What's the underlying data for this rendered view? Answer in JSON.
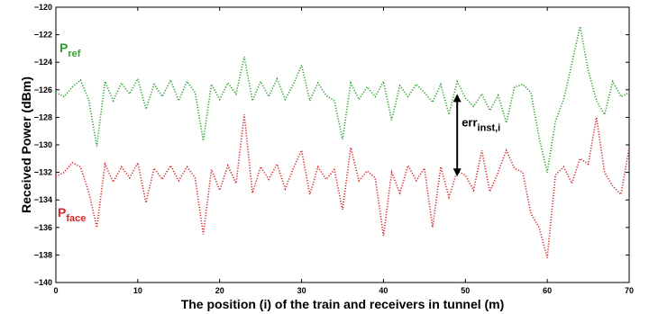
{
  "chart_data": {
    "type": "line",
    "title": "",
    "xlabel": "The position (i) of the train and receivers in tunnel (m)",
    "ylabel": "Received Power (dBm)",
    "xlim": [
      0,
      70
    ],
    "ylim": [
      -140,
      -120
    ],
    "xticks": [
      "0",
      "10",
      "20",
      "30",
      "40",
      "50",
      "60",
      "70"
    ],
    "yticks": [
      "−140",
      "−138",
      "−136",
      "−134",
      "−132",
      "−130",
      "−128",
      "−126",
      "−124",
      "−122",
      "−120"
    ],
    "grid": false,
    "line_style": "dotted",
    "series": [
      {
        "name_main": "P",
        "name_sub": "ref",
        "color": "#2ca02c",
        "x": [
          0,
          1,
          2,
          3,
          4,
          5,
          6,
          7,
          8,
          9,
          10,
          11,
          12,
          13,
          14,
          15,
          16,
          17,
          18,
          19,
          20,
          21,
          22,
          23,
          24,
          25,
          26,
          27,
          28,
          29,
          30,
          31,
          32,
          33,
          34,
          35,
          36,
          37,
          38,
          39,
          40,
          41,
          42,
          43,
          44,
          45,
          46,
          47,
          48,
          49,
          50,
          51,
          52,
          53,
          54,
          55,
          56,
          57,
          58,
          59,
          60,
          61,
          62,
          63,
          64,
          65,
          66,
          67,
          68,
          69,
          70
        ],
        "values": [
          -126.2,
          -126.5,
          -125.8,
          -125.3,
          -126.7,
          -130.1,
          -125.4,
          -126.8,
          -125.5,
          -126.3,
          -125.2,
          -127.4,
          -125.6,
          -126.5,
          -125.3,
          -126.8,
          -125.4,
          -126.2,
          -129.7,
          -125.6,
          -126.7,
          -125.5,
          -126.3,
          -123.6,
          -126.8,
          -125.4,
          -126.5,
          -125.2,
          -126.7,
          -125.6,
          -124.2,
          -126.8,
          -125.5,
          -126.4,
          -126.8,
          -129.6,
          -125.5,
          -126.7,
          -125.8,
          -126.5,
          -125.4,
          -128.2,
          -125.7,
          -126.5,
          -125.6,
          -126.2,
          -126.9,
          -125.6,
          -127.8,
          -125.4,
          -126.6,
          -127.2,
          -126.3,
          -127.5,
          -126.4,
          -128.4,
          -125.8,
          -125.6,
          -126.2,
          -129.5,
          -132.0,
          -128.3,
          -126.7,
          -124.1,
          -121.4,
          -124.6,
          -126.8,
          -127.8,
          -125.4,
          -126.5,
          -126.2
        ]
      },
      {
        "name_main": "P",
        "name_sub": "face",
        "color": "#d62728",
        "x": [
          0,
          1,
          2,
          3,
          4,
          5,
          6,
          7,
          8,
          9,
          10,
          11,
          12,
          13,
          14,
          15,
          16,
          17,
          18,
          19,
          20,
          21,
          22,
          23,
          24,
          25,
          26,
          27,
          28,
          29,
          30,
          31,
          32,
          33,
          34,
          35,
          36,
          37,
          38,
          39,
          40,
          41,
          42,
          43,
          44,
          45,
          46,
          47,
          48,
          49,
          50,
          51,
          52,
          53,
          54,
          55,
          56,
          57,
          58,
          59,
          60,
          61,
          62,
          63,
          64,
          65,
          66,
          67,
          68,
          69,
          70
        ],
        "values": [
          -132.3,
          -132.0,
          -131.3,
          -131.6,
          -133.4,
          -136.0,
          -131.4,
          -132.7,
          -131.6,
          -132.4,
          -131.3,
          -134.2,
          -131.7,
          -132.5,
          -131.5,
          -132.6,
          -131.6,
          -132.4,
          -136.5,
          -131.8,
          -133.3,
          -131.5,
          -132.8,
          -127.8,
          -133.5,
          -131.6,
          -132.5,
          -131.4,
          -133.2,
          -131.7,
          -130.4,
          -133.6,
          -131.6,
          -132.5,
          -131.8,
          -134.7,
          -130.2,
          -132.6,
          -131.9,
          -132.4,
          -136.6,
          -132.0,
          -133.5,
          -131.5,
          -132.6,
          -131.7,
          -136.0,
          -131.6,
          -133.8,
          -131.9,
          -132.2,
          -133.3,
          -130.4,
          -133.4,
          -132.0,
          -130.4,
          -131.7,
          -132.0,
          -135.0,
          -136.0,
          -138.2,
          -132.2,
          -131.6,
          -132.8,
          -131.0,
          -131.4,
          -128.0,
          -132.0,
          -133.0,
          -133.6,
          -130.2
        ]
      }
    ],
    "annotation": {
      "text_main": "err",
      "text_sub": "inst,i",
      "x": 49,
      "y_top": -126.3,
      "y_bottom": -132.3
    }
  }
}
